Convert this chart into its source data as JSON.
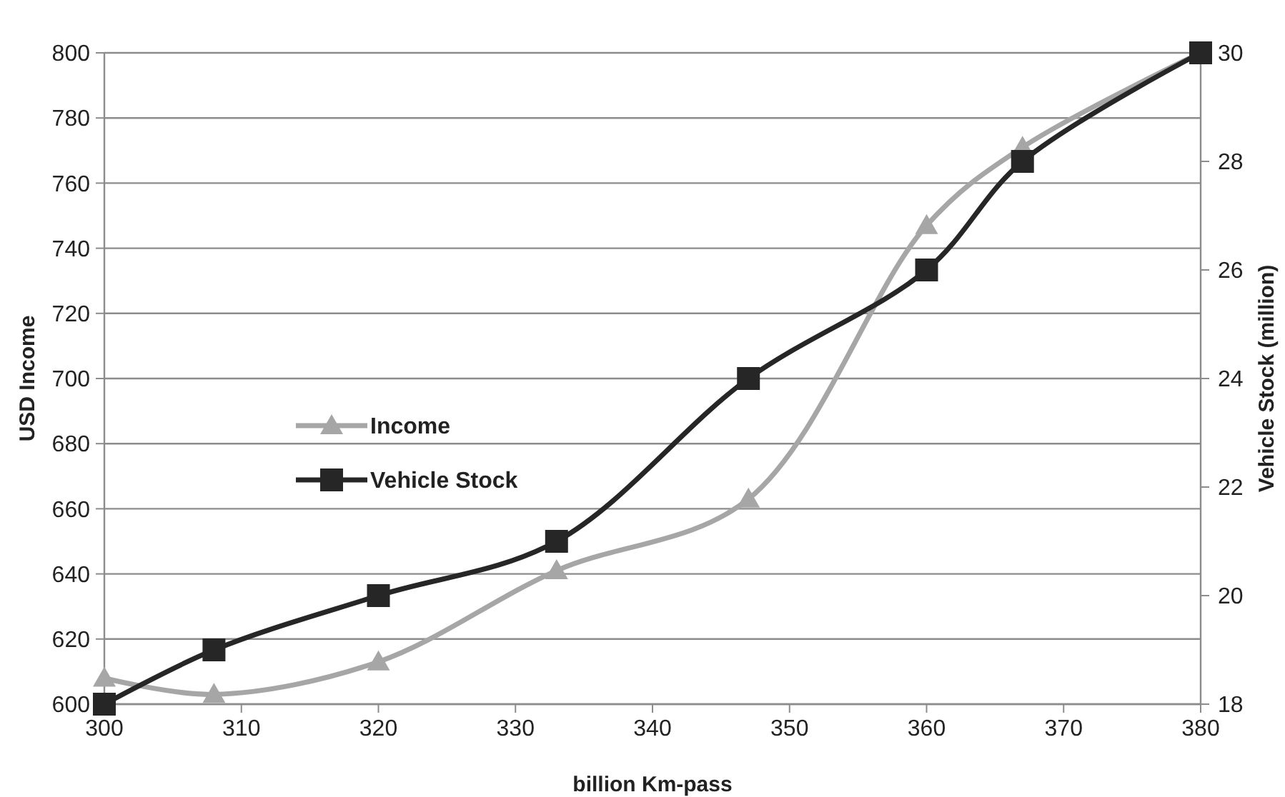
{
  "chart_data": {
    "type": "line",
    "xlabel": "billion Km-pass",
    "ylabel": "USD Income",
    "y2label": "Vehicle Stock (million)",
    "x": [
      300,
      308,
      320,
      333,
      347,
      360,
      367,
      380
    ],
    "series": [
      {
        "name": "Income",
        "color": "#a6a6a6",
        "marker": "triangle",
        "values": [
          608,
          603,
          613,
          641,
          663,
          747,
          771,
          800
        ]
      },
      {
        "name": "Vehicle Stock",
        "color": "#262626",
        "marker": "square",
        "axis": "y2",
        "values": [
          18,
          19,
          20,
          21,
          24,
          26,
          28,
          30
        ]
      }
    ],
    "xlim": [
      300,
      380
    ],
    "xticks": [
      300,
      310,
      320,
      330,
      340,
      350,
      360,
      370,
      380
    ],
    "ylim": [
      600,
      800
    ],
    "yticks": [
      600,
      620,
      640,
      660,
      680,
      700,
      720,
      740,
      760,
      780,
      800
    ],
    "y2lim": [
      18,
      30
    ],
    "y2ticks": [
      18,
      20,
      22,
      24,
      26,
      28,
      30
    ],
    "grid": "y",
    "legend": "left",
    "line_style": "solid"
  }
}
